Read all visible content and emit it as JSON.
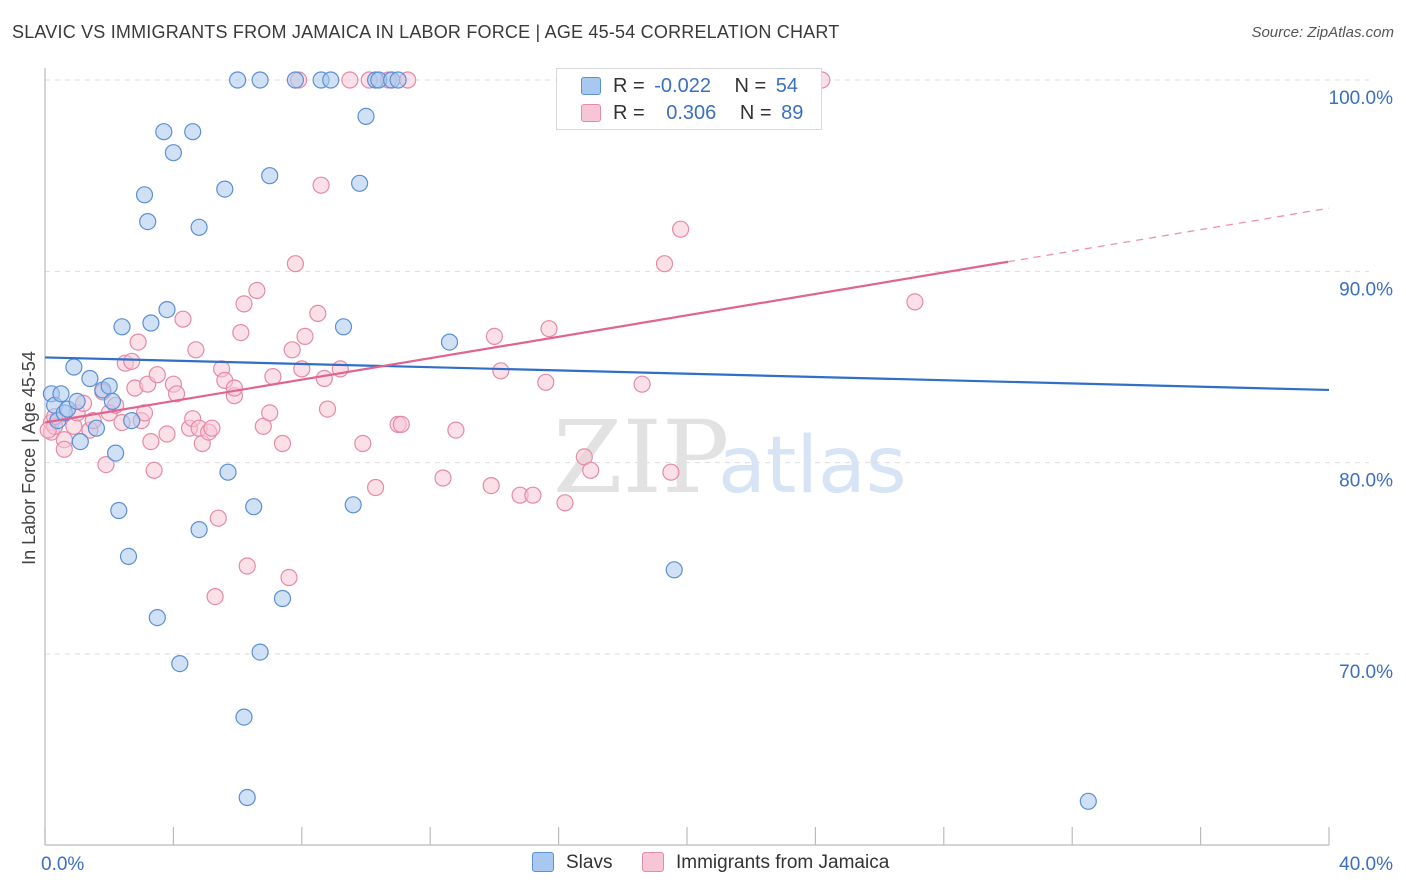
{
  "title": "SLAVIC VS IMMIGRANTS FROM JAMAICA IN LABOR FORCE | AGE 45-54 CORRELATION CHART",
  "source": "Source: ZipAtlas.com",
  "watermark": {
    "zip": "ZIP",
    "atlas": "atlas"
  },
  "legend": {
    "r_label": "R =",
    "n_label": "N =",
    "rows": [
      {
        "series": "Slavs",
        "r": "-0.022",
        "n": "54"
      },
      {
        "series": "Immigrants from Jamaica",
        "r": "0.306",
        "n": "89"
      }
    ]
  },
  "colors": {
    "slavs_fill": "#a9c8ef",
    "slavs_stroke": "#5b8fd6",
    "slavs_line": "#2f6fc8",
    "jamaica_fill": "#f7c6d6",
    "jamaica_stroke": "#e58aa8",
    "jamaica_line": "#e0648f",
    "axis_text": "#3a6fc4",
    "grid": "#dddddd"
  },
  "chart_data": {
    "type": "scatter",
    "title": "SLAVIC VS IMMIGRANTS FROM JAMAICA IN LABOR FORCE | AGE 45-54 CORRELATION CHART",
    "xlabel": "",
    "ylabel": "In Labor Force | Age 45-54",
    "xlim": [
      0,
      40
    ],
    "ylim": [
      60.5,
      101.5
    ],
    "x_tick_labels": [
      {
        "value": 0,
        "label": "0.0%"
      },
      {
        "value": 40,
        "label": "40.0%"
      }
    ],
    "y_ticks": [
      {
        "value": 100,
        "label": "100.0%"
      },
      {
        "value": 90,
        "label": "90.0%"
      },
      {
        "value": 80,
        "label": "80.0%"
      },
      {
        "value": 70,
        "label": "70.0%"
      }
    ],
    "series": [
      {
        "name": "Slavs",
        "r": -0.022,
        "n": 54,
        "trend": {
          "x": [
            0,
            40
          ],
          "y": [
            85.5,
            83.8
          ],
          "dashed_from": null
        },
        "points": [
          [
            0.2,
            83.6
          ],
          [
            0.3,
            83
          ],
          [
            0.4,
            82.2
          ],
          [
            0.5,
            83.6
          ],
          [
            0.6,
            82.6
          ],
          [
            0.7,
            82.8
          ],
          [
            0.9,
            85
          ],
          [
            1.0,
            83.2
          ],
          [
            1.1,
            81.1
          ],
          [
            1.4,
            84.4
          ],
          [
            1.6,
            81.8
          ],
          [
            1.8,
            83.8
          ],
          [
            2.0,
            84
          ],
          [
            2.1,
            83.2
          ],
          [
            2.2,
            80.5
          ],
          [
            2.3,
            77.5
          ],
          [
            2.4,
            87.1
          ],
          [
            2.6,
            75.1
          ],
          [
            2.7,
            82.2
          ],
          [
            3.1,
            94
          ],
          [
            3.2,
            92.6
          ],
          [
            3.3,
            87.3
          ],
          [
            3.5,
            71.9
          ],
          [
            3.7,
            97.3
          ],
          [
            3.8,
            88
          ],
          [
            4.0,
            96.2
          ],
          [
            4.2,
            69.5
          ],
          [
            4.6,
            97.3
          ],
          [
            4.8,
            76.5
          ],
          [
            4.8,
            92.3
          ],
          [
            5.6,
            94.3
          ],
          [
            5.7,
            79.5
          ],
          [
            6.0,
            100
          ],
          [
            6.2,
            66.7
          ],
          [
            6.3,
            62.5
          ],
          [
            6.5,
            77.7
          ],
          [
            6.7,
            70.1
          ],
          [
            6.7,
            100
          ],
          [
            7.0,
            95
          ],
          [
            7.4,
            72.9
          ],
          [
            7.8,
            100
          ],
          [
            8.6,
            100
          ],
          [
            8.9,
            100
          ],
          [
            9.3,
            87.1
          ],
          [
            9.6,
            77.8
          ],
          [
            9.8,
            94.6
          ],
          [
            10.0,
            98.1
          ],
          [
            10.3,
            100
          ],
          [
            10.4,
            100
          ],
          [
            10.8,
            100
          ],
          [
            11.0,
            100
          ],
          [
            12.6,
            86.3
          ],
          [
            19.6,
            74.4
          ],
          [
            32.5,
            62.3
          ]
        ]
      },
      {
        "name": "Immigrants from Jamaica",
        "r": 0.306,
        "n": 89,
        "trend": {
          "x": [
            0,
            40
          ],
          "y": [
            82.1,
            93.3
          ],
          "dashed_from": 30
        },
        "points": [
          [
            0.2,
            81.6
          ],
          [
            0.2,
            82.1
          ],
          [
            0.3,
            81.9
          ],
          [
            0.3,
            82.4
          ],
          [
            0.6,
            81.2
          ],
          [
            0.6,
            80.7
          ],
          [
            0.9,
            81.9
          ],
          [
            1.0,
            82.6
          ],
          [
            1.2,
            83.1
          ],
          [
            1.4,
            81.7
          ],
          [
            1.5,
            82.2
          ],
          [
            1.8,
            83.7
          ],
          [
            1.9,
            79.9
          ],
          [
            2.0,
            82.6
          ],
          [
            2.2,
            83
          ],
          [
            2.4,
            82.1
          ],
          [
            2.5,
            85.2
          ],
          [
            2.7,
            85.3
          ],
          [
            2.8,
            83.9
          ],
          [
            2.9,
            86.3
          ],
          [
            3.0,
            82.2
          ],
          [
            3.1,
            82.6
          ],
          [
            3.2,
            84.1
          ],
          [
            3.3,
            81.1
          ],
          [
            3.4,
            79.6
          ],
          [
            3.5,
            84.6
          ],
          [
            3.8,
            81.5
          ],
          [
            4.0,
            84.1
          ],
          [
            4.1,
            83.6
          ],
          [
            4.3,
            87.5
          ],
          [
            4.5,
            81.8
          ],
          [
            4.6,
            82.3
          ],
          [
            4.7,
            85.9
          ],
          [
            4.8,
            81.8
          ],
          [
            4.9,
            81
          ],
          [
            5.1,
            81.6
          ],
          [
            5.2,
            81.8
          ],
          [
            5.3,
            73
          ],
          [
            5.4,
            77.1
          ],
          [
            5.5,
            84.9
          ],
          [
            5.6,
            84.3
          ],
          [
            5.9,
            83.5
          ],
          [
            5.9,
            83.9
          ],
          [
            6.1,
            86.8
          ],
          [
            6.2,
            88.3
          ],
          [
            6.3,
            74.6
          ],
          [
            6.6,
            89
          ],
          [
            6.8,
            81.9
          ],
          [
            7.0,
            82.6
          ],
          [
            7.1,
            84.5
          ],
          [
            7.4,
            81
          ],
          [
            7.6,
            74
          ],
          [
            7.7,
            85.9
          ],
          [
            7.8,
            90.4
          ],
          [
            7.9,
            100
          ],
          [
            8.0,
            84.9
          ],
          [
            8.1,
            86.6
          ],
          [
            8.5,
            87.8
          ],
          [
            8.6,
            94.5
          ],
          [
            8.7,
            84.4
          ],
          [
            8.8,
            82.8
          ],
          [
            9.2,
            84.9
          ],
          [
            9.5,
            100
          ],
          [
            9.9,
            81
          ],
          [
            10.1,
            100
          ],
          [
            10.3,
            78.7
          ],
          [
            10.7,
            100
          ],
          [
            11.0,
            82
          ],
          [
            11.1,
            82
          ],
          [
            11.3,
            100
          ],
          [
            12.4,
            79.2
          ],
          [
            12.8,
            81.7
          ],
          [
            13.9,
            78.8
          ],
          [
            14.0,
            86.6
          ],
          [
            14.2,
            84.8
          ],
          [
            14.8,
            78.3
          ],
          [
            15.2,
            78.3
          ],
          [
            15.6,
            84.2
          ],
          [
            15.7,
            87
          ],
          [
            16.2,
            77.9
          ],
          [
            16.8,
            80.3
          ],
          [
            17.0,
            79.6
          ],
          [
            18.6,
            84.1
          ],
          [
            19.3,
            90.4
          ],
          [
            19.5,
            79.5
          ],
          [
            19.8,
            92.2
          ],
          [
            24.2,
            100
          ],
          [
            27.1,
            88.4
          ],
          [
            0.1,
            81.7
          ]
        ]
      }
    ]
  }
}
